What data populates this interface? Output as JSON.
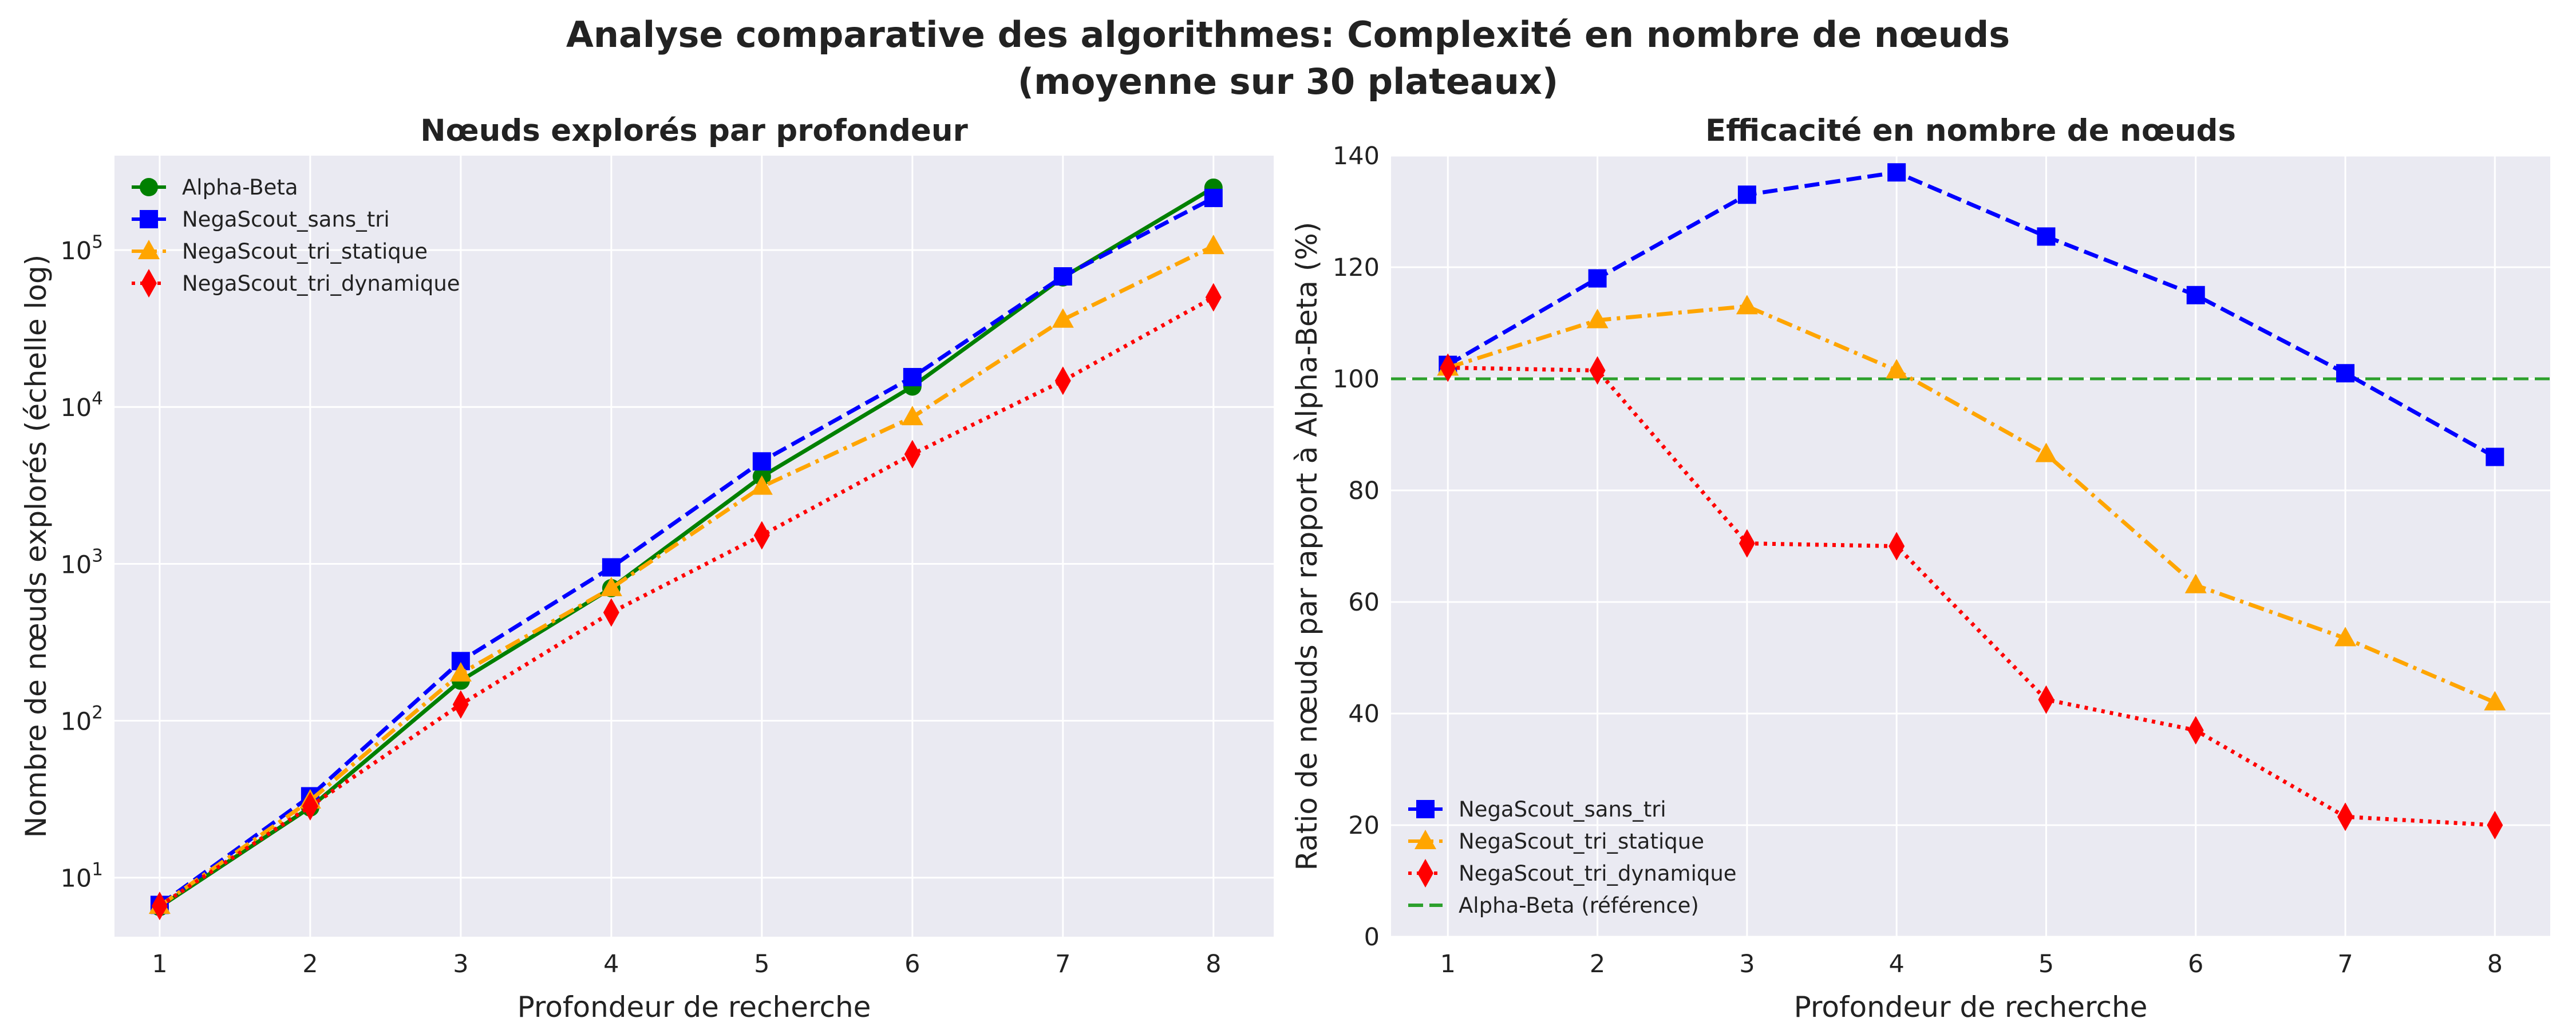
{
  "suptitle": {
    "line1": "Analyse comparative des algorithmes: Complexité en nombre de nœuds",
    "line2": "(moyenne sur 30 plateaux)"
  },
  "chart_data": [
    {
      "type": "line",
      "title": "Nœuds explorés par profondeur",
      "xlabel": "Profondeur de recherche",
      "ylabel": "Nombre de nœuds explorés (échelle log)",
      "yscale": "log",
      "x": [
        1,
        2,
        3,
        4,
        5,
        6,
        7,
        8
      ],
      "xticks": [
        "1",
        "2",
        "3",
        "4",
        "5",
        "6",
        "7",
        "8"
      ],
      "yticks": [
        {
          "base": "10",
          "exp": "1",
          "value": 10
        },
        {
          "base": "10",
          "exp": "2",
          "value": 100
        },
        {
          "base": "10",
          "exp": "3",
          "value": 1000
        },
        {
          "base": "10",
          "exp": "4",
          "value": 10000
        },
        {
          "base": "10",
          "exp": "5",
          "value": 100000
        }
      ],
      "xlim": [
        0.7,
        8.4
      ],
      "ylim": [
        4.2,
        400000
      ],
      "grid": true,
      "legend_position": "upper left",
      "series": [
        {
          "name": "Alpha-Beta",
          "color": "#008000",
          "dash": "solid",
          "marker": "circle",
          "values": [
            6.5,
            28,
            180,
            700,
            3600,
            13500,
            67000,
            250000
          ]
        },
        {
          "name": "NegaScout_sans_tri",
          "color": "#0000ff",
          "dash": "dashed",
          "marker": "square",
          "values": [
            6.7,
            33,
            240,
            950,
            4500,
            15500,
            68000,
            215000
          ]
        },
        {
          "name": "NegaScout_tri_statique",
          "color": "#ffa500",
          "dash": "dashdot",
          "marker": "triangle",
          "values": [
            6.6,
            31,
            200,
            700,
            3100,
            8600,
            36000,
            106000
          ]
        },
        {
          "name": "NegaScout_tri_dynamique",
          "color": "#ff0000",
          "dash": "dotted",
          "marker": "diamond",
          "values": [
            6.6,
            28.5,
            127,
            490,
            1520,
            5000,
            14700,
            50000
          ]
        }
      ]
    },
    {
      "type": "line",
      "title": "Efficacité en nombre de nœuds",
      "xlabel": "Profondeur de recherche",
      "ylabel": "Ratio de nœuds par rapport à Alpha-Beta (%)",
      "x": [
        1,
        2,
        3,
        4,
        5,
        6,
        7,
        8
      ],
      "xticks": [
        "1",
        "2",
        "3",
        "4",
        "5",
        "6",
        "7",
        "8"
      ],
      "yticks": [
        "0",
        "20",
        "40",
        "60",
        "80",
        "100",
        "120",
        "140"
      ],
      "ylim": [
        0,
        140
      ],
      "xlim": [
        0.62,
        8.37
      ],
      "grid": true,
      "legend_position": "lower left",
      "series": [
        {
          "name": "NegaScout_sans_tri",
          "color": "#0000ff",
          "dash": "dashed",
          "marker": "square",
          "values": [
            102.5,
            118,
            133,
            137,
            125.5,
            115,
            101,
            86
          ]
        },
        {
          "name": "NegaScout_tri_statique",
          "color": "#ffa500",
          "dash": "dashdot",
          "marker": "triangle",
          "values": [
            102,
            110.5,
            113,
            101.5,
            86.5,
            63,
            53.5,
            42
          ]
        },
        {
          "name": "NegaScout_tri_dynamique",
          "color": "#ff0000",
          "dash": "dotted",
          "marker": "diamond",
          "values": [
            102,
            101.5,
            70.5,
            70,
            42.5,
            37,
            21.5,
            20
          ]
        }
      ],
      "reference_line": {
        "name": "Alpha-Beta (référence)",
        "value": 100,
        "color": "#2ca02c",
        "dash": "dashed"
      }
    }
  ]
}
